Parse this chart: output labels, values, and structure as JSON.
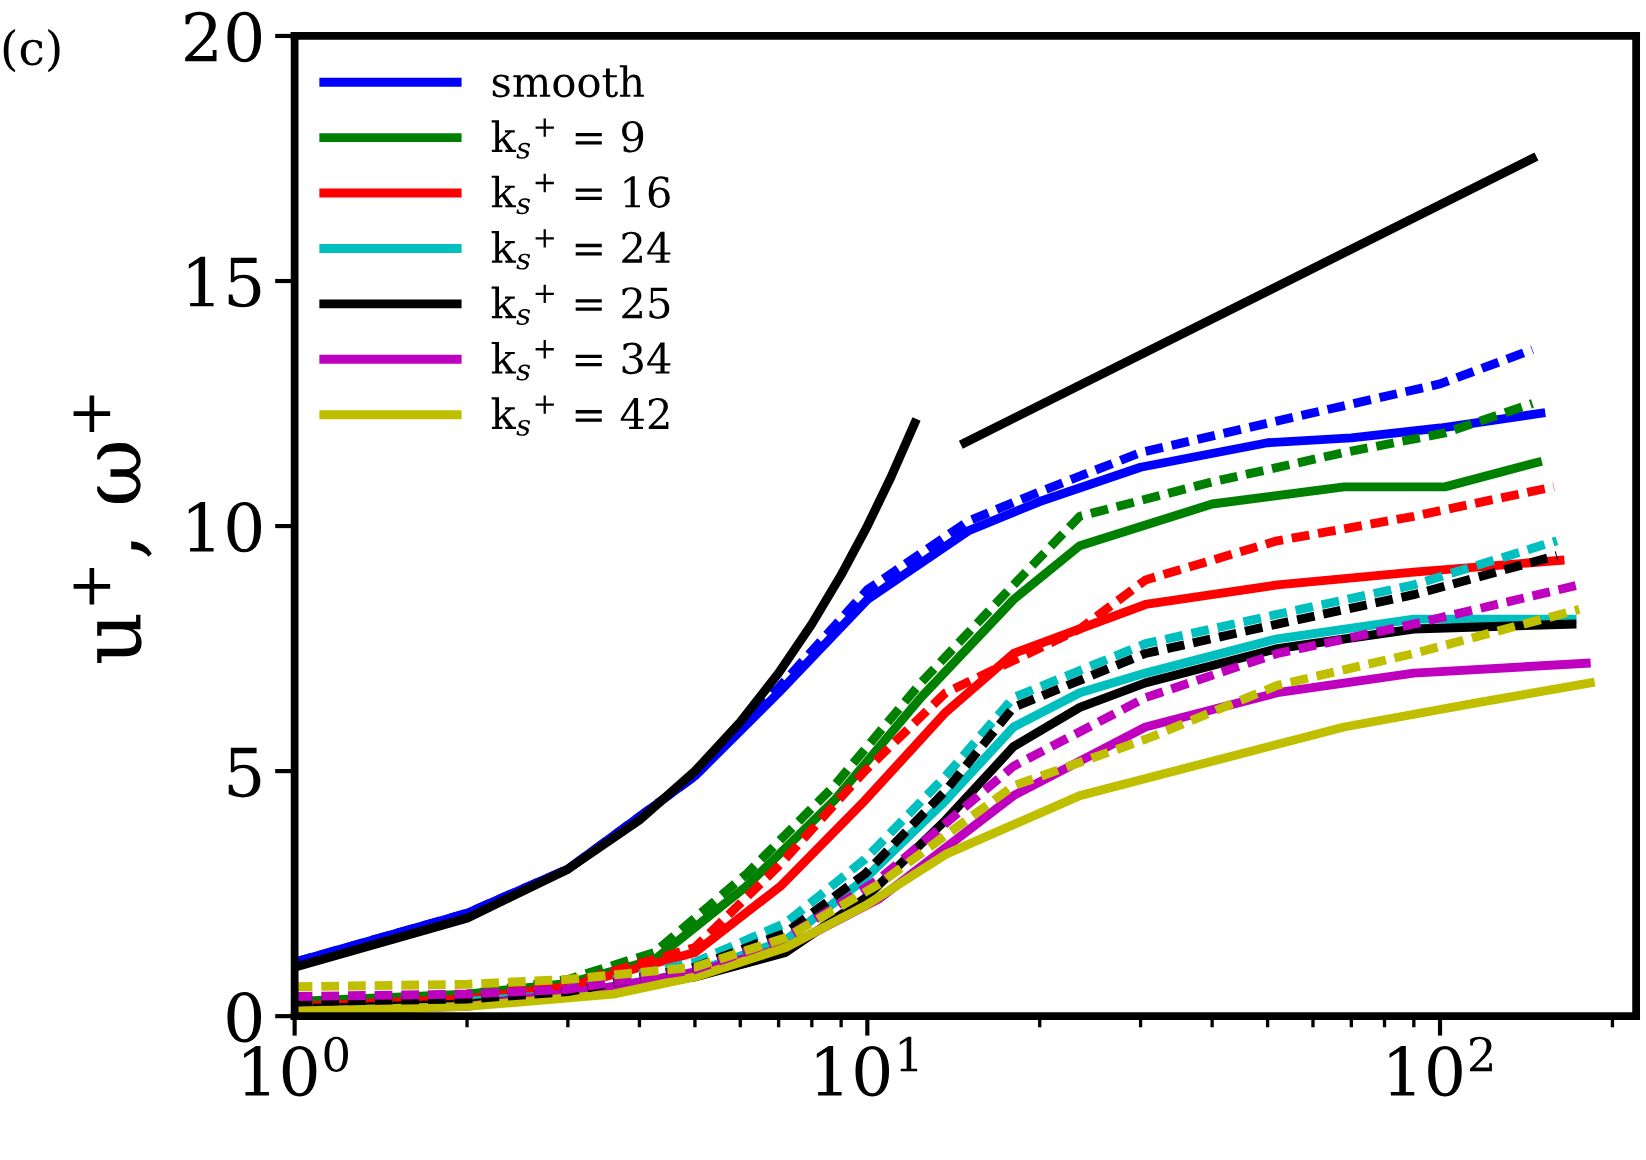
{
  "chart_data": {
    "type": "line",
    "title": "(c)",
    "ylabel": "u$^{+}$, ω$^{+}$",
    "xlim": [
      1,
      220
    ],
    "ylim": [
      0,
      20
    ],
    "log": "x",
    "xticks": [
      {
        "value": 1,
        "label": "10$^{0}$"
      },
      {
        "value": 10,
        "label": "10$^{1}$"
      },
      {
        "value": 100,
        "label": "10$^{2}$"
      }
    ],
    "yticks": [
      0,
      5,
      10,
      15,
      20
    ],
    "grid": false,
    "legend": "top left",
    "series": [
      {
        "name": "smooth",
        "color": "#0000ff",
        "x": [
          1,
          2,
          3,
          5,
          7,
          10,
          15,
          20,
          30,
          50,
          70,
          100,
          150
        ],
        "values": [
          1.1,
          2.1,
          3.0,
          4.9,
          6.6,
          8.5,
          9.9,
          10.5,
          11.2,
          11.7,
          11.8,
          12.0,
          12.3
        ]
      },
      {
        "name": "k$_{s}$$^{+}$ = 9",
        "color": "#008000",
        "x": [
          1,
          2,
          3,
          4.25,
          6.15,
          8.75,
          12.4,
          18,
          23.5,
          40,
          68,
          102,
          148
        ],
        "values": [
          0.3,
          0.45,
          0.67,
          1.15,
          2.65,
          4.4,
          6.5,
          8.5,
          9.6,
          10.45,
          10.8,
          10.8,
          11.3
        ]
      },
      {
        "name": "k$_{s}$$^{+}$ = 16",
        "color": "#ff0000",
        "x": [
          1,
          2,
          3,
          5,
          7.05,
          9.9,
          13.7,
          18,
          30.6,
          52,
          90,
          162
        ],
        "values": [
          0.2,
          0.35,
          0.6,
          1.3,
          2.65,
          4.4,
          6.2,
          7.4,
          8.4,
          8.8,
          9.06,
          9.3
        ]
      },
      {
        "name": "k$_{s}$$^{+}$ = 24",
        "color": "#00bfbf",
        "x": [
          2,
          3,
          5,
          7.2,
          9.9,
          13.7,
          18,
          23.5,
          30.6,
          52,
          90,
          170
        ],
        "values": [
          0.3,
          0.45,
          0.9,
          1.55,
          2.8,
          4.4,
          5.9,
          6.6,
          7.0,
          7.7,
          8.1,
          8.1
        ]
      },
      {
        "name": "k$_{s}$$^{+}$ = 25",
        "color": "#000000",
        "x": [
          1,
          2,
          3,
          5,
          7.2,
          9.9,
          13.7,
          18,
          23.5,
          30.6,
          52,
          90,
          170
        ],
        "values": [
          0.15,
          0.25,
          0.4,
          0.8,
          1.3,
          2.4,
          4.0,
          5.5,
          6.3,
          6.8,
          7.5,
          7.9,
          8.0
        ]
      },
      {
        "name": "k$_{s}$$^{+}$ = 34",
        "color": "#bf00bf",
        "x": [
          1,
          2,
          3.6,
          5,
          7.2,
          10.5,
          18,
          30.6,
          52,
          90,
          180
        ],
        "values": [
          0.1,
          0.2,
          0.6,
          0.9,
          1.4,
          2.4,
          4.5,
          5.9,
          6.6,
          7.0,
          7.2
        ]
      },
      {
        "name": "k$_{s}$$^{+}$ = 42",
        "color": "#bfbf00",
        "x": [
          1,
          2,
          3.6,
          5,
          7.2,
          9.9,
          13.7,
          23.5,
          40,
          68,
          117,
          183
        ],
        "values": [
          0.1,
          0.2,
          0.45,
          0.8,
          1.4,
          2.25,
          3.3,
          4.5,
          5.2,
          5.9,
          6.4,
          6.8
        ]
      },
      {
        "color": "#0000ff",
        "line_style": "dashed",
        "x": [
          1,
          2,
          3,
          5,
          7,
          10,
          15,
          20,
          30,
          50,
          100,
          145
        ],
        "values": [
          1.1,
          2.1,
          3.0,
          4.9,
          6.7,
          8.7,
          10.1,
          10.7,
          11.5,
          12.1,
          12.9,
          13.6
        ]
      },
      {
        "color": "#008000",
        "line_style": "dashed",
        "x": [
          1,
          2,
          3,
          4.25,
          6.15,
          8.75,
          12.4,
          18,
          23.5,
          40,
          68,
          102,
          145
        ],
        "values": [
          0.3,
          0.45,
          0.75,
          1.3,
          2.9,
          4.7,
          6.8,
          8.8,
          10.2,
          10.9,
          11.5,
          11.9,
          12.5
        ]
      },
      {
        "color": "#ff0000",
        "line_style": "dashed",
        "x": [
          1,
          2,
          3,
          5,
          7.05,
          9.9,
          13.7,
          23.5,
          30.6,
          52,
          90,
          158
        ],
        "values": [
          0.3,
          0.4,
          0.65,
          1.4,
          3.1,
          5.0,
          6.6,
          7.9,
          8.9,
          9.7,
          10.2,
          10.8
        ]
      },
      {
        "color": "#00bfbf",
        "line_style": "dashed",
        "x": [
          1,
          2,
          3,
          5,
          7.2,
          9.9,
          13.7,
          18,
          30.6,
          52,
          90,
          160
        ],
        "values": [
          0.3,
          0.4,
          0.55,
          1.1,
          1.9,
          3.2,
          4.9,
          6.5,
          7.6,
          8.2,
          8.8,
          9.7
        ]
      },
      {
        "color": "#000000",
        "line_style": "dashed",
        "x": [
          1,
          2,
          3,
          5,
          7.2,
          9.9,
          13.7,
          18,
          30.6,
          52,
          90,
          160
        ],
        "values": [
          0.3,
          0.35,
          0.5,
          1.0,
          1.7,
          2.9,
          4.6,
          6.3,
          7.4,
          8.0,
          8.6,
          9.4
        ]
      },
      {
        "color": "#bf00bf",
        "line_style": "dashed",
        "x": [
          1,
          2,
          3,
          5,
          7.2,
          10.5,
          18,
          30.6,
          52,
          90,
          175
        ],
        "values": [
          0.4,
          0.45,
          0.55,
          0.95,
          1.6,
          2.8,
          5.1,
          6.5,
          7.4,
          8.0,
          8.8
        ]
      },
      {
        "color": "#bfbf00",
        "line_style": "dashed",
        "x": [
          1,
          2,
          3,
          5,
          7.2,
          10.5,
          18,
          30.6,
          52,
          90,
          175
        ],
        "values": [
          0.6,
          0.65,
          0.75,
          1.0,
          1.6,
          2.7,
          4.7,
          5.65,
          6.75,
          7.4,
          8.3
        ]
      },
      {
        "color": "#000000",
        "x": [
          1,
          2,
          3,
          4,
          5,
          6,
          7,
          8,
          9,
          10,
          11,
          12.1
        ],
        "values": [
          1,
          2,
          3,
          4,
          5,
          6,
          7,
          8,
          9,
          10,
          11,
          12.1
        ]
      },
      {
        "color": "#000000",
        "x": [
          14.8,
          145
        ],
        "values": [
          11.7,
          17.5
        ]
      }
    ]
  }
}
